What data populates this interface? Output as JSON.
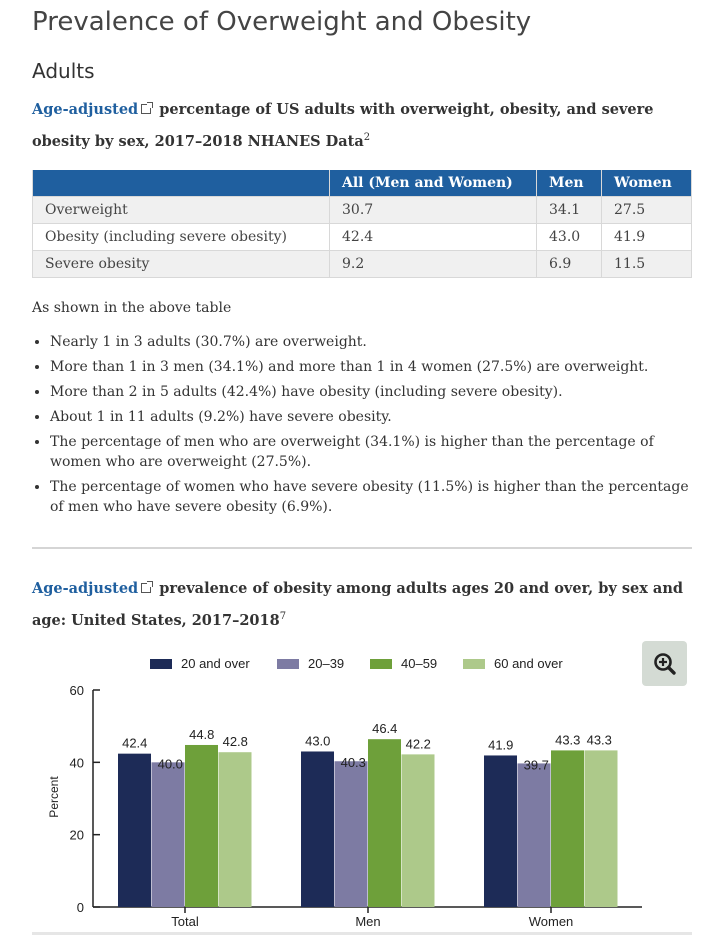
{
  "title": "Prevalence of Overweight and Obesity",
  "subtitle": "Adults",
  "intro": {
    "link": "Age-adjusted",
    "text": "percentage of US adults with overweight, obesity, and severe obesity by sex, 2017–2018 NHANES Data",
    "sup": "2"
  },
  "table": {
    "headers": [
      "",
      "All (Men and Women)",
      "Men",
      "Women"
    ],
    "rows": [
      [
        "Overweight",
        "30.7",
        "34.1",
        "27.5"
      ],
      [
        "Obesity (including severe obesity)",
        "42.4",
        "43.0",
        "41.9"
      ],
      [
        "Severe obesity",
        "9.2",
        "6.9",
        "11.5"
      ]
    ]
  },
  "shown_text": "As shown in the above table",
  "bullets": [
    "Nearly 1 in 3 adults (30.7%) are overweight.",
    "More than 1 in 3 men (34.1%) and more than 1 in 4 women (27.5%) are overweight.",
    "More than 2 in 5 adults (42.4%) have obesity (including severe obesity).",
    "About 1 in 11 adults (9.2%) have severe obesity.",
    "The percentage of men who are overweight (34.1%) is higher than the percentage of women who are overweight (27.5%).",
    "The percentage of women who have severe obesity (11.5%) is higher than the percentage of men who have severe obesity (6.9%)."
  ],
  "chart_intro": {
    "link": "Age-adjusted",
    "text": "prevalence of obesity among adults ages 20 and over, by sex and age: United States, 2017–2018",
    "sup": "7"
  },
  "zoom_icon": "zoom-in-icon",
  "chart_data": {
    "type": "bar",
    "categories": [
      "Total",
      "Men",
      "Women"
    ],
    "series": [
      {
        "name": "20 and over",
        "values": [
          42.4,
          43.0,
          41.9
        ],
        "color": "#1d2b57"
      },
      {
        "name": "20–39",
        "values": [
          40.0,
          40.3,
          39.7
        ],
        "color": "#7d7ba3"
      },
      {
        "name": "40–59",
        "values": [
          44.8,
          46.4,
          43.3
        ],
        "color": "#6ea03a"
      },
      {
        "name": "60 and over",
        "values": [
          42.8,
          42.2,
          43.3
        ],
        "color": "#adc98a"
      }
    ],
    "ylabel": "Percent",
    "ylim": [
      0,
      60
    ],
    "yticks": [
      "0",
      "20",
      "40",
      "60"
    ],
    "value_labels": [
      [
        "42.4",
        "43.0",
        "41.9"
      ],
      [
        "40.0",
        "40.3",
        "39.7"
      ],
      [
        "44.8",
        "46.4",
        "43.3"
      ],
      [
        "42.8",
        "42.2",
        "43.3"
      ]
    ],
    "legend": "top"
  }
}
